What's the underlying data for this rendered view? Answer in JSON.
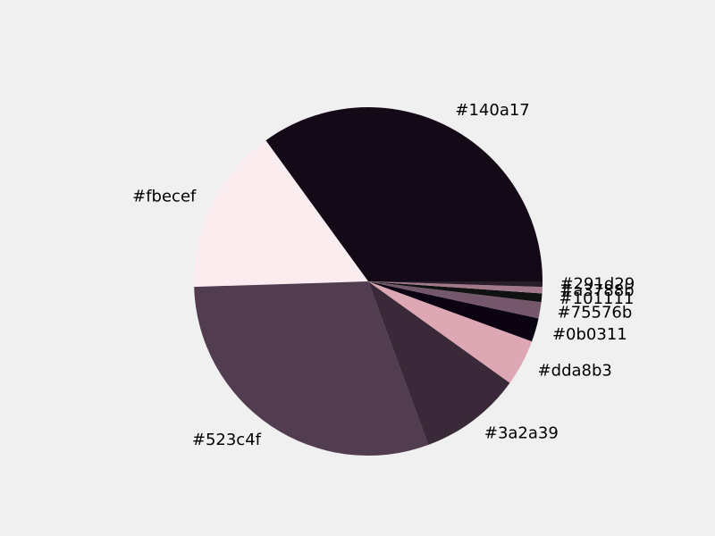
{
  "chart_data": {
    "type": "pie",
    "start_angle_deg": 0,
    "direction": "counterclockwise",
    "slices": [
      {
        "label": "#140a17",
        "value": 35.0,
        "color": "#140a17"
      },
      {
        "label": "#fbecef",
        "value": 15.5,
        "color": "#fbecef"
      },
      {
        "label": "#523c4f",
        "value": 30.1,
        "color": "#523c4f"
      },
      {
        "label": "#3a2a39",
        "value": 9.5,
        "color": "#3a2a39"
      },
      {
        "label": "#dda8b3",
        "value": 4.3,
        "color": "#dda8b3"
      },
      {
        "label": "#0b0311",
        "value": 2.2,
        "color": "#0b0311"
      },
      {
        "label": "#75576b",
        "value": 1.5,
        "color": "#75576b"
      },
      {
        "label": "#101111",
        "value": 0.8,
        "color": "#101111"
      },
      {
        "label": "#a3788b",
        "value": 0.6,
        "color": "#a3788b"
      },
      {
        "label": "#291d29",
        "value": 0.5,
        "color": "#291d29"
      }
    ]
  }
}
